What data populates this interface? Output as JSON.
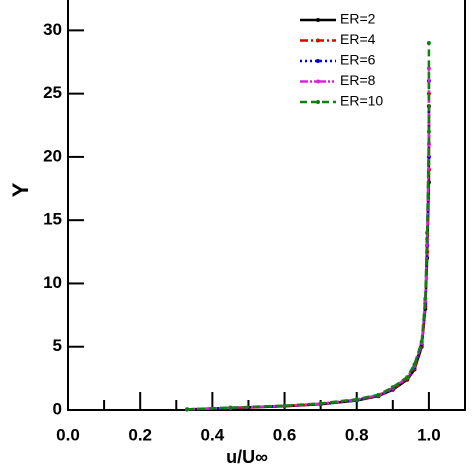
{
  "chart_data": {
    "type": "line",
    "xlabel": "u/U∞",
    "ylabel": "Y",
    "xlim": [
      0,
      1.1
    ],
    "ylim": [
      0,
      32.4
    ],
    "xticks": [
      {
        "value": 0,
        "label": "0.0"
      },
      {
        "value": 0.2,
        "label": "0.2"
      },
      {
        "value": 0.4,
        "label": "0.4"
      },
      {
        "value": 0.6,
        "label": "0.6"
      },
      {
        "value": 0.8,
        "label": "0.8"
      },
      {
        "value": 1,
        "label": "1.0"
      }
    ],
    "xminorticks": [
      0.1,
      0.3,
      0.5,
      0.7,
      0.9
    ],
    "yticks": [
      0,
      5,
      10,
      15,
      20,
      25,
      30
    ],
    "legend": "upper right",
    "series": [
      {
        "name": "ER=2",
        "color": "#000000",
        "dash": "none",
        "x": [
          0.33,
          0.45,
          0.6,
          0.7,
          0.8,
          0.86,
          0.9,
          0.94,
          0.96,
          0.98,
          0.99,
          0.995,
          1.0,
          1.0
        ],
        "values": [
          0.05,
          0.15,
          0.3,
          0.45,
          0.75,
          1.1,
          1.6,
          2.4,
          3.2,
          5,
          8,
          12,
          18,
          24
        ]
      },
      {
        "name": "ER=4",
        "color": "#e00000",
        "dash": "8 3 2 3",
        "x": [
          0.33,
          0.45,
          0.6,
          0.7,
          0.8,
          0.86,
          0.9,
          0.94,
          0.96,
          0.98,
          0.99,
          0.995,
          1.0,
          1.0
        ],
        "values": [
          0.05,
          0.16,
          0.31,
          0.47,
          0.78,
          1.12,
          1.65,
          2.45,
          3.3,
          5.1,
          8.2,
          12.5,
          19,
          25
        ]
      },
      {
        "name": "ER=6",
        "color": "#0000cc",
        "dash": "2 3",
        "x": [
          0.33,
          0.45,
          0.6,
          0.7,
          0.8,
          0.86,
          0.9,
          0.94,
          0.96,
          0.98,
          0.99,
          0.995,
          1.0,
          1.0
        ],
        "values": [
          0.05,
          0.17,
          0.32,
          0.48,
          0.8,
          1.15,
          1.7,
          2.5,
          3.4,
          5.2,
          8.4,
          13,
          20,
          26
        ]
      },
      {
        "name": "ER=8",
        "color": "#e020e0",
        "dash": "8 2 2 2 2 2",
        "x": [
          0.33,
          0.45,
          0.6,
          0.7,
          0.8,
          0.86,
          0.9,
          0.94,
          0.96,
          0.98,
          0.99,
          0.995,
          1.0,
          1.0
        ],
        "values": [
          0.05,
          0.18,
          0.33,
          0.5,
          0.82,
          1.18,
          1.75,
          2.55,
          3.5,
          5.3,
          8.6,
          13.5,
          21,
          27
        ]
      },
      {
        "name": "ER=10",
        "color": "#108010",
        "dash": "7 4",
        "x": [
          0.33,
          0.45,
          0.6,
          0.7,
          0.8,
          0.86,
          0.9,
          0.94,
          0.96,
          0.98,
          0.99,
          0.995,
          1.0,
          1.0
        ],
        "values": [
          0.05,
          0.19,
          0.34,
          0.52,
          0.85,
          1.2,
          1.8,
          2.6,
          3.6,
          5.4,
          8.8,
          14,
          22,
          29
        ]
      }
    ]
  }
}
